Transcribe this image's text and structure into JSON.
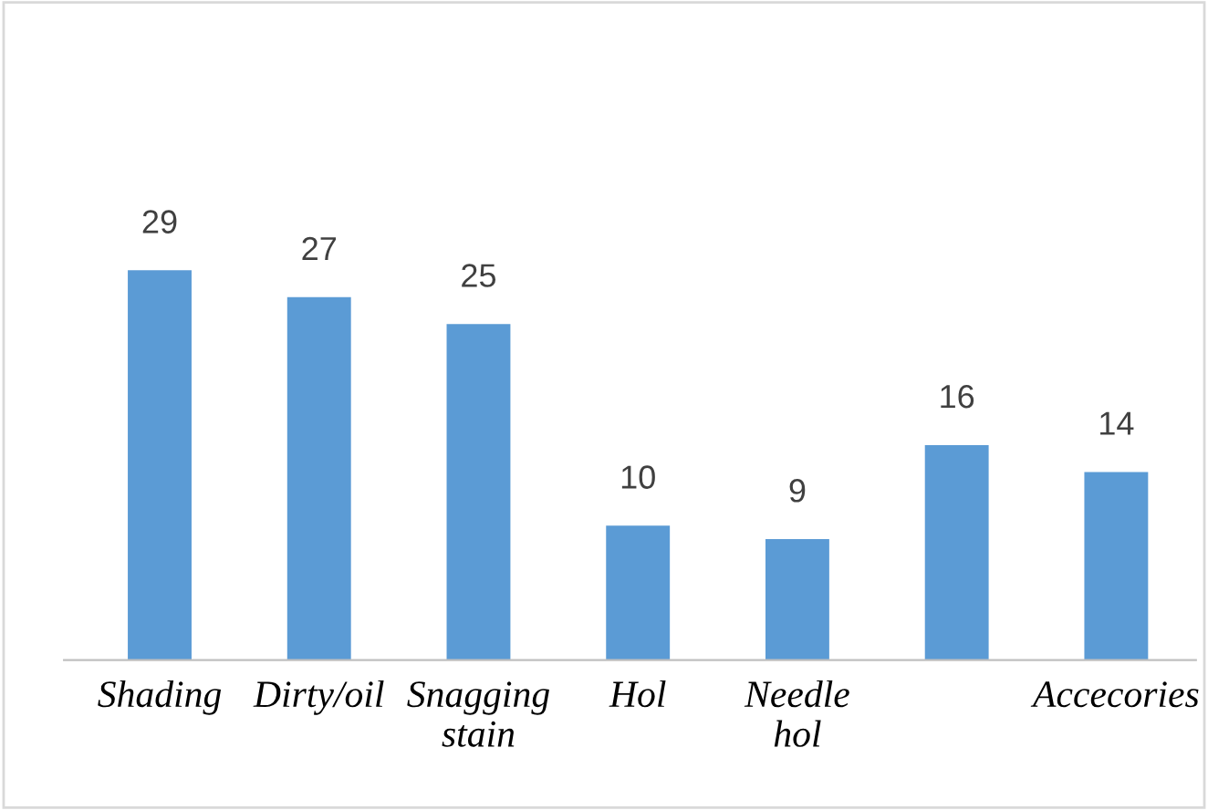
{
  "chart_data": {
    "type": "bar",
    "categories": [
      "Shading",
      "Dirty/oil",
      "Snagging\nstain",
      "Hol",
      "Needle\nhol",
      null,
      "Accecories"
    ],
    "values": [
      29,
      27,
      25,
      10,
      9,
      16,
      14
    ],
    "color": "#5b9bd5",
    "data_labels": true,
    "grid": false,
    "legend": false
  }
}
